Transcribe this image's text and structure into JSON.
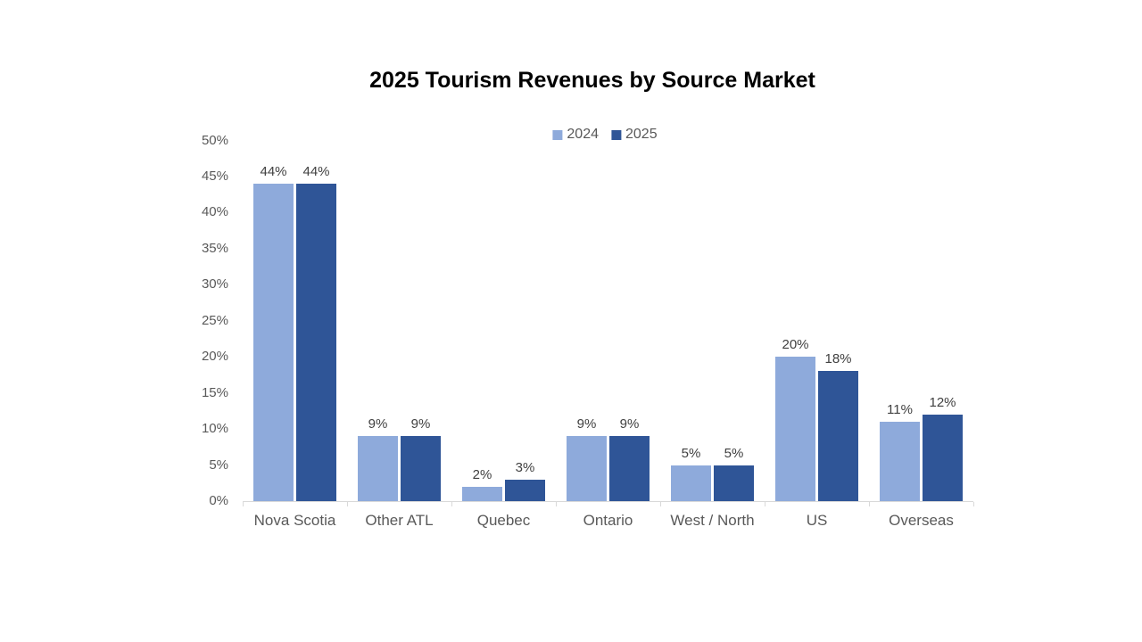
{
  "title": "2025 Tourism Revenues by Source Market",
  "legend": {
    "items": [
      {
        "label": "2024",
        "color": "#8EAADB"
      },
      {
        "label": "2025",
        "color": "#2F5597"
      }
    ]
  },
  "chart_data": {
    "type": "bar",
    "title": "2025 Tourism Revenues by Source Market",
    "categories": [
      "Nova Scotia",
      "Other ATL",
      "Quebec",
      "Ontario",
      "West / North",
      "US",
      "Overseas"
    ],
    "series": [
      {
        "name": "2024",
        "color": "#8EAADB",
        "values": [
          44,
          9,
          2,
          9,
          5,
          20,
          11
        ]
      },
      {
        "name": "2025",
        "color": "#2F5597",
        "values": [
          44,
          9,
          3,
          9,
          5,
          18,
          12
        ]
      }
    ],
    "data_labels": [
      "44%",
      "9%",
      "2%",
      "9%",
      "5%",
      "20%",
      "11%",
      "44%",
      "9%",
      "3%",
      "9%",
      "5%",
      "18%",
      "12%"
    ],
    "value_suffix": "%",
    "xlabel": "",
    "ylabel": "",
    "ylim": [
      0,
      50
    ],
    "ytick_step": 5,
    "ytick_labels": [
      "0%",
      "5%",
      "10%",
      "15%",
      "20%",
      "25%",
      "30%",
      "35%",
      "40%",
      "45%",
      "50%"
    ],
    "grid": false,
    "legend_position": "top-center",
    "show_data_labels": true
  },
  "colors": {
    "background": "#FFFFFF",
    "title_text": "#000000",
    "axis_text": "#595959",
    "data_label_text": "#404040",
    "axis_line": "#D9D9D9"
  }
}
